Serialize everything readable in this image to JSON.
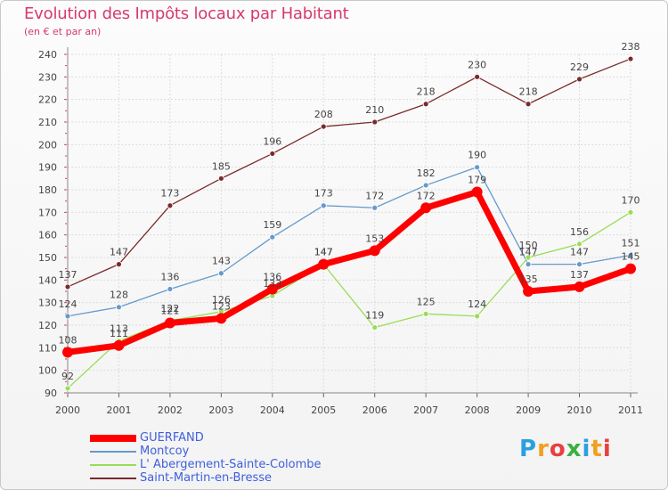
{
  "title": "Evolution des Impôts locaux par Habitant",
  "subtitle": "(en € et par an)",
  "logo": {
    "text": "Proxiti",
    "colors": [
      "#2aa0e0",
      "#f0a020",
      "#e84040",
      "#3ab040",
      "#2aa0e0",
      "#f0a020",
      "#e84040"
    ]
  },
  "chart_data": {
    "type": "line",
    "x": [
      "2000",
      "2001",
      "2002",
      "2003",
      "2004",
      "2005",
      "2006",
      "2007",
      "2008",
      "2009",
      "2010",
      "2011"
    ],
    "ylim": [
      90,
      240
    ],
    "yticks": [
      90,
      100,
      110,
      120,
      130,
      140,
      150,
      160,
      170,
      180,
      190,
      200,
      210,
      220,
      230,
      240
    ],
    "grid": true,
    "legend_position": "bottom-left",
    "series": [
      {
        "name": "GUERFAND",
        "color": "#ff0000",
        "values": [
          108,
          111,
          121,
          123,
          136,
          147,
          153,
          172,
          179,
          135,
          137,
          145
        ]
      },
      {
        "name": "Montcoy",
        "color": "#6699cc",
        "values": [
          124,
          128,
          136,
          143,
          159,
          173,
          172,
          182,
          190,
          147,
          147,
          151
        ]
      },
      {
        "name": "L' Abergement-Sainte-Colombe",
        "color": "#99dd55",
        "values": [
          92,
          113,
          122,
          126,
          133,
          147,
          119,
          125,
          124,
          150,
          156,
          170
        ]
      },
      {
        "name": "Saint-Martin-en-Bresse",
        "color": "#7a2a2a",
        "values": [
          137,
          147,
          173,
          185,
          196,
          208,
          210,
          218,
          230,
          218,
          229,
          238
        ]
      }
    ]
  }
}
